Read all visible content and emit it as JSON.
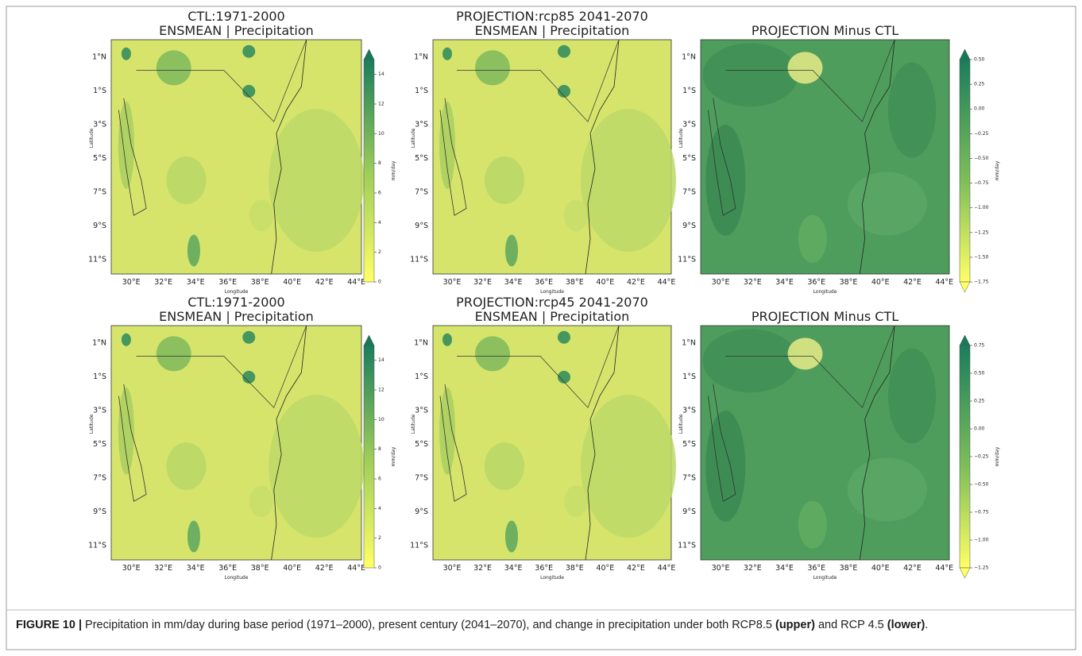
{
  "panels": [
    {
      "kind": "precip",
      "title": [
        "CTL:1971-2000",
        "ENSMEAN | Precipitation"
      ],
      "lat_ticks": [
        "1°N",
        "1°S",
        "3°S",
        "5°S",
        "7°S",
        "9°S",
        "11°S"
      ],
      "lon_ticks": [
        "30°E",
        "32°E",
        "34°E",
        "36°E",
        "38°E",
        "40°E",
        "42°E",
        "44°E"
      ],
      "xlabel": "Longitude",
      "ylabel": "Latitude",
      "colorbar": {
        "label": "mm/day",
        "lim": [
          0,
          15
        ],
        "ticks": [
          0,
          2,
          4,
          6,
          8,
          10,
          12,
          14
        ]
      }
    },
    {
      "kind": "precip",
      "title": [
        "PROJECTION:rcp85 2041-2070",
        "ENSMEAN | Precipitation"
      ],
      "lat_ticks": [
        "1°N",
        "1°S",
        "3°S",
        "5°S",
        "7°S",
        "9°S",
        "11°S"
      ],
      "lon_ticks": [
        "30°E",
        "32°E",
        "34°E",
        "36°E",
        "38°E",
        "40°E",
        "42°E",
        "44°E"
      ],
      "xlabel": "Longitude",
      "ylabel": "Latitude"
    },
    {
      "kind": "diff",
      "title": [
        "PROJECTION Minus CTL"
      ],
      "lat_ticks": [
        "1°N",
        "1°S",
        "3°S",
        "5°S",
        "7°S",
        "9°S",
        "11°S"
      ],
      "lon_ticks": [
        "30°E",
        "32°E",
        "34°E",
        "36°E",
        "38°E",
        "40°E",
        "42°E",
        "44°E"
      ],
      "xlabel": "Longitude",
      "ylabel": "Latitude",
      "colorbar": {
        "label": "mm/day",
        "lim": [
          -1.75,
          0.5
        ],
        "ticks": [
          {
            "value": 0.5,
            "label": "0.50"
          },
          {
            "value": 0.25,
            "label": "0.25"
          },
          {
            "value": 0,
            "label": "0.00"
          },
          {
            "value": -0.25,
            "label": "−0.25"
          },
          {
            "value": -0.5,
            "label": "−0.50"
          },
          {
            "value": -0.75,
            "label": "−0.75"
          },
          {
            "value": -1,
            "label": "−1.00"
          },
          {
            "value": -1.25,
            "label": "−1.25"
          },
          {
            "value": -1.5,
            "label": "−1.50"
          },
          {
            "value": -1.75,
            "label": "−1.75"
          }
        ]
      }
    },
    {
      "kind": "precip",
      "title": [
        "CTL:1971-2000",
        "ENSMEAN | Precipitation"
      ],
      "lat_ticks": [
        "1°N",
        "1°S",
        "3°S",
        "5°S",
        "7°S",
        "9°S",
        "11°S"
      ],
      "lon_ticks": [
        "30°E",
        "32°E",
        "34°E",
        "36°E",
        "38°E",
        "40°E",
        "42°E",
        "44°E"
      ],
      "xlabel": "Longitude",
      "ylabel": "Latitude",
      "colorbar": {
        "label": "mm/day",
        "lim": [
          0,
          15
        ],
        "ticks": [
          0,
          2,
          4,
          6,
          8,
          10,
          12,
          14
        ]
      }
    },
    {
      "kind": "precip",
      "title": [
        "PROJECTION:rcp45 2041-2070",
        "ENSMEAN | Precipitation"
      ],
      "lat_ticks": [
        "1°N",
        "1°S",
        "3°S",
        "5°S",
        "7°S",
        "9°S",
        "11°S"
      ],
      "lon_ticks": [
        "30°E",
        "32°E",
        "34°E",
        "36°E",
        "38°E",
        "40°E",
        "42°E",
        "44°E"
      ],
      "xlabel": "Longitude",
      "ylabel": "Latitude"
    },
    {
      "kind": "diff",
      "title": [
        "PROJECTION Minus CTL"
      ],
      "lat_ticks": [
        "1°N",
        "1°S",
        "3°S",
        "5°S",
        "7°S",
        "9°S",
        "11°S"
      ],
      "lon_ticks": [
        "30°E",
        "32°E",
        "34°E",
        "36°E",
        "38°E",
        "40°E",
        "42°E",
        "44°E"
      ],
      "xlabel": "Longitude",
      "ylabel": "Latitude",
      "colorbar": {
        "label": "mm/day",
        "lim": [
          -1.25,
          0.75
        ],
        "ticks": [
          {
            "value": 0.75,
            "label": "0.75"
          },
          {
            "value": 0.5,
            "label": "0.50"
          },
          {
            "value": 0.25,
            "label": "0.25"
          },
          {
            "value": 0,
            "label": "0.00"
          },
          {
            "value": -0.25,
            "label": "−0.25"
          },
          {
            "value": -0.5,
            "label": "−0.50"
          },
          {
            "value": -0.75,
            "label": "−0.75"
          },
          {
            "value": -1,
            "label": "−1.00"
          },
          {
            "value": -1.25,
            "label": "−1.25"
          }
        ]
      }
    }
  ],
  "caption": {
    "label": "FIGURE 10 |",
    "text_1": " Precipitation in mm/day during base period (1971–2000), present century (2041–2070), and change in precipitation under both RCP8.5 ",
    "bold_1": "(upper)",
    "text_2": " and RCP 4.5 ",
    "bold_2": "(lower)",
    "text_3": "."
  }
}
